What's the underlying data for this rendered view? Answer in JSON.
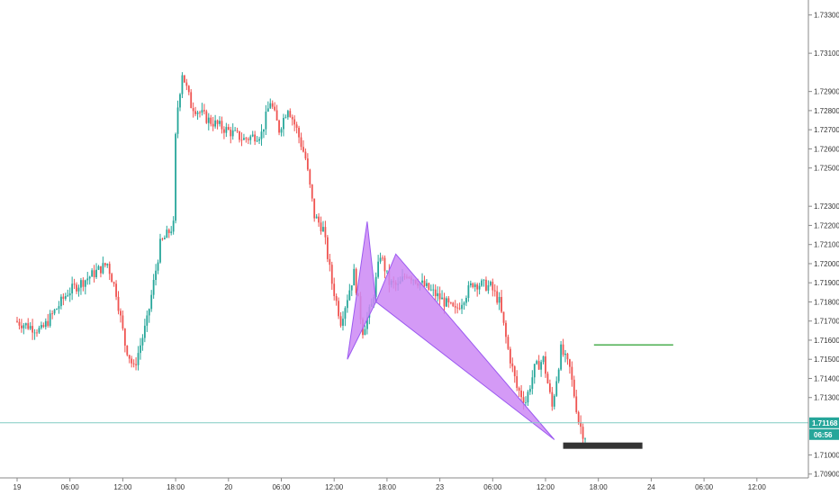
{
  "chart_data": {
    "type": "candlestick",
    "y_axis": {
      "ticks": [
        "1.73300",
        "1.73100",
        "1.72900",
        "1.72800",
        "1.72700",
        "1.72600",
        "1.72500",
        "1.72300",
        "1.72200",
        "1.72100",
        "1.72000",
        "1.71900",
        "1.71800",
        "1.71700",
        "1.71600",
        "1.71500",
        "1.71400",
        "1.71300",
        "1.71000",
        "1.70900"
      ],
      "range": [
        1.7088,
        1.7335
      ]
    },
    "x_axis": {
      "ticks": [
        "19",
        "06:00",
        "12:00",
        "18:00",
        "20",
        "06:00",
        "12:00",
        "18:00",
        "23",
        "06:00",
        "12:00",
        "18:00",
        "24",
        "06:00",
        "12:00"
      ]
    },
    "current_price": {
      "value": "1.71168",
      "countdown": "06:56",
      "color": "#26a69a"
    },
    "target_level": {
      "value": 1.71575,
      "color": "#4caf50"
    },
    "stop_box": {
      "color": "#333333"
    },
    "harmonic_pattern": {
      "fill": "#cc88f5",
      "points": [
        {
          "t": "day2 13:30",
          "p": 1.715
        },
        {
          "t": "day2 15:45",
          "p": 1.7222
        },
        {
          "t": "day2 16:45",
          "p": 1.718
        },
        {
          "t": "day2 19:00",
          "p": 1.7205
        },
        {
          "t": "day3 13:00",
          "p": 1.7108
        }
      ]
    },
    "colors": {
      "up": "#26a69a",
      "down": "#ef5350",
      "grid": "#eeeeee",
      "axis": "#888888"
    }
  }
}
